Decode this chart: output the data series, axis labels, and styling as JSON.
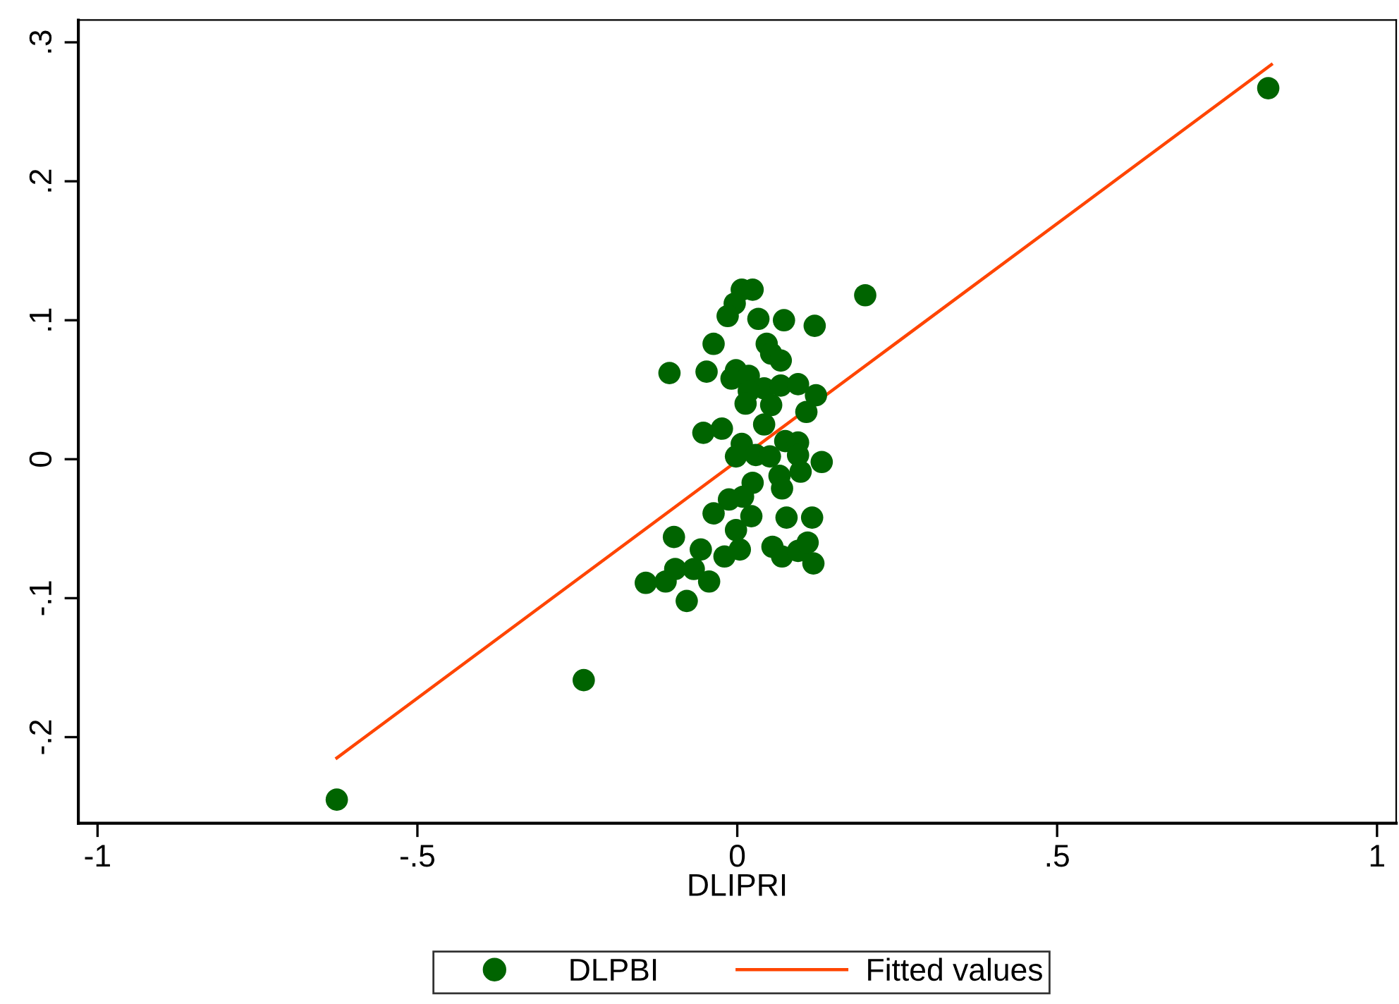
{
  "chart_data": {
    "type": "scatter",
    "xlabel": "DLIPRI",
    "xlim": [
      -1.03,
      1.03
    ],
    "ylim": [
      -0.262,
      0.316
    ],
    "xticks": [
      {
        "value": -1,
        "label": "-1"
      },
      {
        "value": -0.5,
        "label": "-.5"
      },
      0,
      {
        "value": 0.5,
        "label": ".5"
      },
      1
    ],
    "yticks": [
      {
        "value": -0.2,
        "label": "-.2"
      },
      {
        "value": -0.1,
        "label": "-.1"
      },
      0,
      {
        "value": 0.1,
        "label": ".1"
      },
      {
        "value": 0.2,
        "label": ".2"
      },
      {
        "value": 0.3,
        "label": ".3"
      }
    ],
    "grid": false,
    "legend": "bottom",
    "marker": "circle",
    "series": [
      {
        "name": "DLPBI",
        "color": "#006400",
        "x": [
          0.83,
          -0.626,
          -0.24,
          0.2,
          0.007,
          0.024,
          -0.004,
          -0.015,
          0.033,
          0.073,
          0.121,
          -0.037,
          0.046,
          0.053,
          0.068,
          -0.106,
          -0.048,
          -0.002,
          -0.009,
          0.018,
          0.042,
          0.068,
          0.095,
          0.018,
          0.013,
          0.053,
          0.123,
          0.108,
          0.042,
          -0.053,
          -0.024,
          0.007,
          -0.002,
          0.029,
          0.051,
          0.075,
          0.095,
          0.095,
          0.132,
          0.099,
          0.066,
          0.07,
          0.024,
          0.009,
          -0.013,
          -0.037,
          0.022,
          0.077,
          0.117,
          -0.002,
          -0.099,
          -0.057,
          0.004,
          -0.02,
          0.055,
          0.07,
          0.095,
          0.11,
          0.119,
          -0.143,
          -0.112,
          -0.097,
          -0.068,
          -0.044,
          -0.079
        ],
        "values": [
          0.267,
          -0.245,
          -0.159,
          0.118,
          0.122,
          0.122,
          0.112,
          0.103,
          0.101,
          0.1,
          0.096,
          0.083,
          0.083,
          0.076,
          0.071,
          0.062,
          0.063,
          0.064,
          0.058,
          0.06,
          0.051,
          0.053,
          0.054,
          0.049,
          0.04,
          0.039,
          0.046,
          0.034,
          0.025,
          0.019,
          0.022,
          0.011,
          0.002,
          0.003,
          0.002,
          0.013,
          0.012,
          0.003,
          -0.002,
          -0.009,
          -0.012,
          -0.021,
          -0.017,
          -0.027,
          -0.029,
          -0.039,
          -0.041,
          -0.042,
          -0.042,
          -0.051,
          -0.056,
          -0.065,
          -0.065,
          -0.07,
          -0.063,
          -0.07,
          -0.066,
          -0.06,
          -0.075,
          -0.089,
          -0.088,
          -0.079,
          -0.079,
          -0.088,
          -0.102
        ]
      },
      {
        "name": "Fitted values",
        "type": "line",
        "color": "#ff4500",
        "line_style": "solid",
        "marker": "none",
        "x": [
          -0.626,
          0.835
        ],
        "values": [
          -0.215,
          0.284
        ]
      }
    ]
  }
}
